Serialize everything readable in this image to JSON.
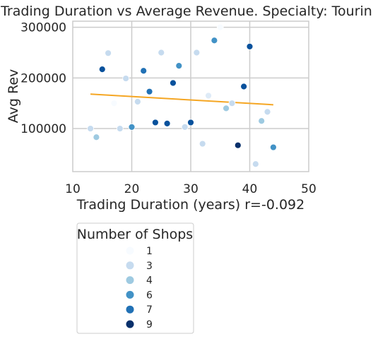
{
  "chart_data": {
    "type": "scatter",
    "title": "Trading Duration vs Average Revenue. Specialty: Touring",
    "xlabel": "Trading Duration (years)   r=-0.092",
    "ylabel": "Avg Rev",
    "xlim": [
      10,
      50
    ],
    "ylim": [
      15000,
      312000
    ],
    "xticks": [
      10,
      20,
      30,
      40,
      50
    ],
    "yticks": [
      100000,
      200000,
      300000
    ],
    "xtick_labels": [
      "10",
      "20",
      "30",
      "40",
      "50"
    ],
    "ytick_labels": [
      "100000",
      "200000",
      "300000"
    ],
    "grid": true,
    "legend": {
      "title": "Number of Shops",
      "placement": "below",
      "entries": [
        {
          "label": "1",
          "color": "#f7fbff"
        },
        {
          "label": "3",
          "color": "#c6dbef"
        },
        {
          "label": "4",
          "color": "#9ecae1"
        },
        {
          "label": "6",
          "color": "#4292c6"
        },
        {
          "label": "7",
          "color": "#2171b5"
        },
        {
          "label": "9",
          "color": "#08306b"
        }
      ]
    },
    "colors": {
      "1": "#f7fbff",
      "2": "#deebf7",
      "3": "#c6dbef",
      "4": "#9ecae1",
      "5": "#6baed6",
      "6": "#4292c6",
      "7": "#2171b5",
      "8": "#08519c",
      "9": "#08306b"
    },
    "points": [
      {
        "x": 13,
        "y": 100000,
        "shops": 3
      },
      {
        "x": 14,
        "y": 83000,
        "shops": 4
      },
      {
        "x": 15,
        "y": 217000,
        "shops": 8
      },
      {
        "x": 16,
        "y": 249000,
        "shops": 3
      },
      {
        "x": 17,
        "y": 150000,
        "shops": 1
      },
      {
        "x": 18,
        "y": 100000,
        "shops": 3
      },
      {
        "x": 19,
        "y": 199000,
        "shops": 3
      },
      {
        "x": 20,
        "y": 103000,
        "shops": 6
      },
      {
        "x": 21,
        "y": 153000,
        "shops": 3
      },
      {
        "x": 22,
        "y": 214000,
        "shops": 7
      },
      {
        "x": 23,
        "y": 173000,
        "shops": 7
      },
      {
        "x": 24,
        "y": 112000,
        "shops": 8
      },
      {
        "x": 25,
        "y": 250000,
        "shops": 3
      },
      {
        "x": 26,
        "y": 110000,
        "shops": 8
      },
      {
        "x": 27,
        "y": 190000,
        "shops": 8
      },
      {
        "x": 28,
        "y": 224000,
        "shops": 6
      },
      {
        "x": 29,
        "y": 103000,
        "shops": 3
      },
      {
        "x": 30,
        "y": 112000,
        "shops": 8
      },
      {
        "x": 31,
        "y": 250000,
        "shops": 3
      },
      {
        "x": 32,
        "y": 70000,
        "shops": 3
      },
      {
        "x": 33,
        "y": 165000,
        "shops": 2
      },
      {
        "x": 34,
        "y": 274000,
        "shops": 6
      },
      {
        "x": 35,
        "y": 300000,
        "shops": 1
      },
      {
        "x": 36,
        "y": 140000,
        "shops": 4
      },
      {
        "x": 37,
        "y": 150000,
        "shops": 3
      },
      {
        "x": 38,
        "y": 67000,
        "shops": 9
      },
      {
        "x": 39,
        "y": 183000,
        "shops": 8
      },
      {
        "x": 40,
        "y": 262000,
        "shops": 8
      },
      {
        "x": 41,
        "y": 30000,
        "shops": 3
      },
      {
        "x": 42,
        "y": 115000,
        "shops": 4
      },
      {
        "x": 43,
        "y": 133000,
        "shops": 3
      },
      {
        "x": 44,
        "y": 63000,
        "shops": 6
      }
    ],
    "trendline": {
      "x": [
        13,
        44
      ],
      "y": [
        168000,
        147000
      ],
      "color": "#f5a623"
    }
  }
}
